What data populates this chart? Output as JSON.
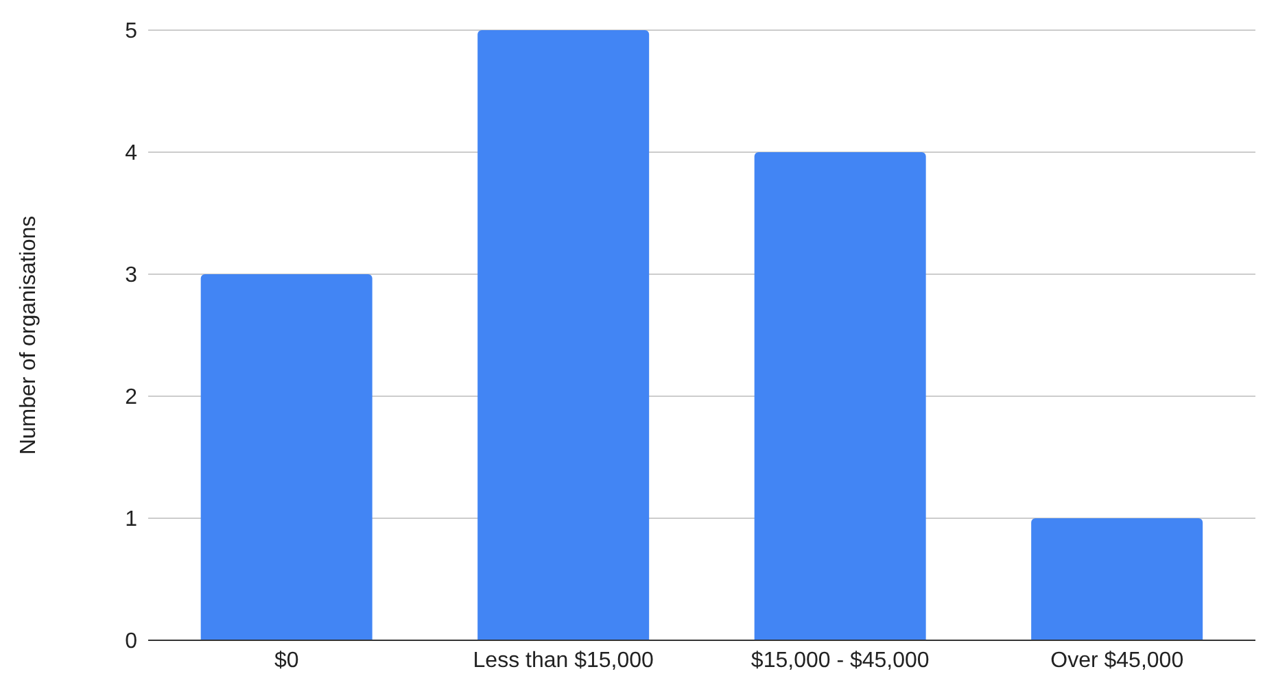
{
  "chart_data": {
    "type": "bar",
    "ylabel": "Number of organisations",
    "categories": [
      "$0",
      "Less than $15,000",
      "$15,000 - $45,000",
      "Over $45,000"
    ],
    "values": [
      3,
      5,
      4,
      1
    ],
    "color": "#4285f4",
    "ylim": [
      0,
      5
    ],
    "yticks": [
      0,
      1,
      2,
      3,
      4,
      5
    ],
    "grid": "y"
  }
}
